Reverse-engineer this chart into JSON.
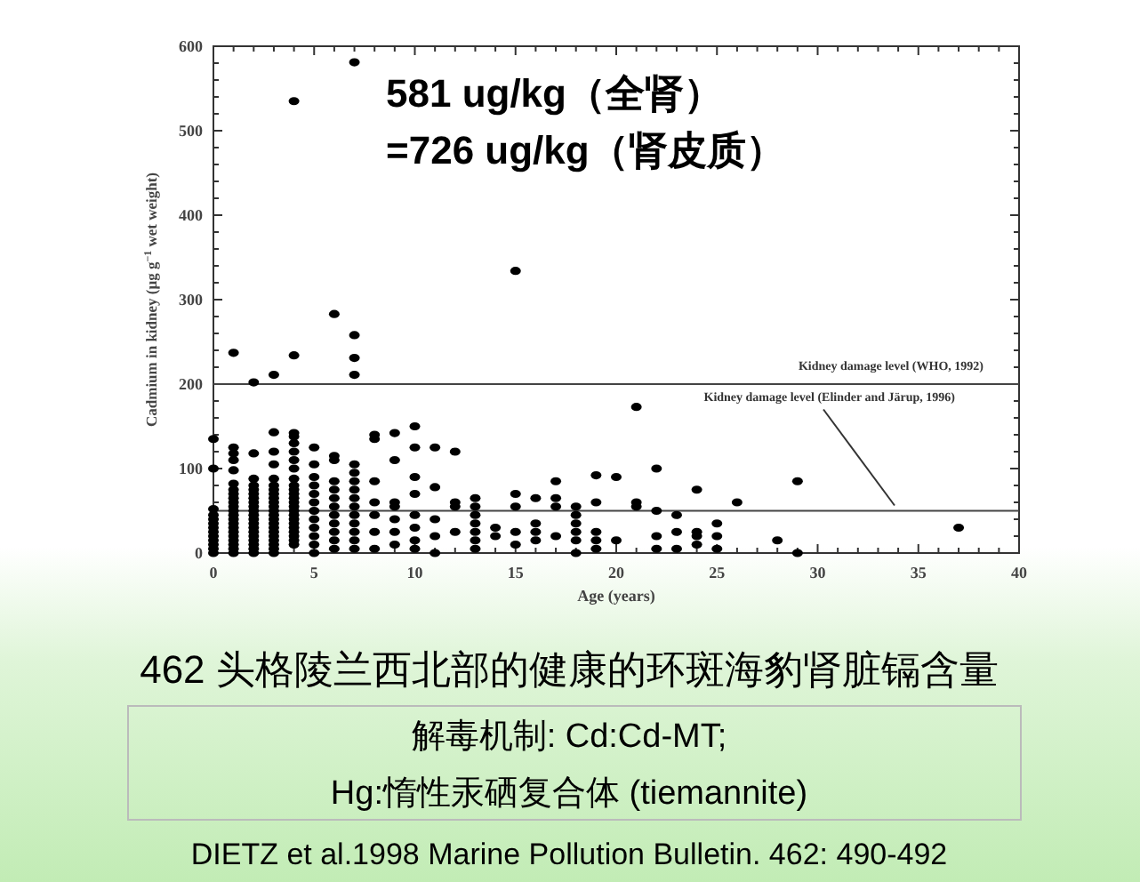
{
  "chart_data": {
    "type": "scatter",
    "title": "462 头格陵兰西北部的健康的环斑海豹肾脏镉含量",
    "xlabel": "Age (years)",
    "ylabel": "Cadmium in kidney (µg g$^{−1}$ wet weight)",
    "annotations": [
      "581 ug/kg（全肾）",
      "=726 ug/kg（肾皮质）",
      "解毒机制: Cd:Cd-MT;",
      "Hg:惰性汞硒复合体 (tiemannite)",
      "DIETZ et al.1998 Marine Pollution Bulletin. 462: 490-492"
    ],
    "xlim": [
      0,
      40
    ],
    "ylim": [
      0,
      600
    ],
    "xticks": [
      0,
      5,
      10,
      15,
      20,
      25,
      30,
      35,
      40
    ],
    "yticks": [
      0,
      100,
      200,
      300,
      400,
      500,
      600
    ],
    "grid": false,
    "marker": "circle",
    "ref_lines": [
      {
        "axis": "y",
        "value": 200,
        "label": "Kidney damage level (WHO, 1992)"
      },
      {
        "axis": "y",
        "value": 50,
        "label": "Kidney damage level (Elinder and Järup, 1996)"
      }
    ],
    "series": [
      {
        "color": "#000000",
        "x": [
          0,
          0,
          0,
          0,
          0,
          0,
          0,
          0,
          0,
          0,
          0,
          0,
          0,
          1,
          1,
          1,
          1,
          1,
          1,
          1,
          1,
          1,
          1,
          1,
          1,
          1,
          1,
          1,
          1,
          1,
          1,
          1,
          1,
          1,
          1,
          2,
          2,
          2,
          2,
          2,
          2,
          2,
          2,
          2,
          2,
          2,
          2,
          2,
          2,
          2,
          2,
          2,
          2,
          2,
          2,
          3,
          3,
          3,
          3,
          3,
          3,
          3,
          3,
          3,
          3,
          3,
          3,
          3,
          3,
          3,
          3,
          3,
          3,
          3,
          3,
          3,
          3,
          4,
          4,
          4,
          4,
          4,
          4,
          4,
          4,
          4,
          4,
          4,
          4,
          4,
          4,
          4,
          4,
          4,
          4,
          4,
          4,
          4,
          4,
          4,
          4,
          5,
          5,
          5,
          5,
          5,
          5,
          5,
          5,
          5,
          5,
          5,
          5,
          6,
          6,
          6,
          6,
          6,
          6,
          6,
          6,
          6,
          6,
          6,
          6,
          7,
          7,
          7,
          7,
          7,
          7,
          7,
          7,
          7,
          7,
          7,
          7,
          7,
          7,
          7,
          8,
          8,
          8,
          8,
          8,
          8,
          8,
          9,
          9,
          9,
          9,
          9,
          9,
          9,
          10,
          10,
          10,
          10,
          10,
          10,
          10,
          10,
          11,
          11,
          11,
          11,
          11,
          12,
          12,
          12,
          12,
          13,
          13,
          13,
          13,
          13,
          13,
          13,
          14,
          14,
          15,
          15,
          15,
          15,
          15,
          16,
          16,
          16,
          16,
          17,
          17,
          17,
          17,
          18,
          18,
          18,
          18,
          18,
          18,
          19,
          19,
          19,
          19,
          19,
          20,
          20,
          21,
          21,
          21,
          22,
          22,
          22,
          22,
          23,
          23,
          23,
          24,
          24,
          24,
          24,
          25,
          25,
          25,
          26,
          28,
          29,
          29,
          37
        ],
        "values": [
          0,
          5,
          10,
          15,
          20,
          25,
          30,
          35,
          40,
          45,
          52,
          100,
          135,
          0,
          5,
          10,
          15,
          20,
          25,
          30,
          35,
          40,
          45,
          50,
          55,
          60,
          65,
          70,
          75,
          82,
          98,
          110,
          118,
          125,
          237,
          0,
          5,
          10,
          15,
          20,
          25,
          30,
          35,
          40,
          45,
          50,
          55,
          60,
          65,
          70,
          75,
          80,
          88,
          118,
          202,
          0,
          5,
          10,
          15,
          20,
          25,
          30,
          35,
          40,
          45,
          50,
          55,
          60,
          65,
          70,
          75,
          80,
          88,
          105,
          120,
          143,
          211,
          10,
          15,
          20,
          25,
          30,
          35,
          40,
          45,
          50,
          55,
          60,
          65,
          70,
          75,
          80,
          88,
          100,
          110,
          120,
          130,
          138,
          142,
          234,
          535,
          0,
          10,
          20,
          30,
          40,
          50,
          60,
          70,
          80,
          90,
          105,
          125,
          5,
          15,
          25,
          35,
          45,
          55,
          65,
          75,
          85,
          110,
          115,
          283,
          5,
          15,
          25,
          35,
          45,
          55,
          65,
          75,
          85,
          95,
          105,
          211,
          231,
          258,
          581,
          5,
          25,
          45,
          60,
          85,
          135,
          140,
          10,
          25,
          40,
          55,
          60,
          110,
          142,
          5,
          15,
          30,
          45,
          70,
          90,
          125,
          150,
          0,
          20,
          40,
          78,
          125,
          25,
          55,
          60,
          120,
          5,
          15,
          25,
          35,
          45,
          55,
          65,
          20,
          30,
          10,
          25,
          55,
          70,
          334,
          15,
          25,
          35,
          65,
          20,
          55,
          65,
          85,
          0,
          15,
          25,
          35,
          45,
          55,
          5,
          15,
          25,
          60,
          92,
          15,
          90,
          55,
          60,
          173,
          5,
          20,
          50,
          100,
          5,
          25,
          45,
          10,
          20,
          25,
          75,
          5,
          20,
          35,
          60,
          15,
          0,
          85,
          30
        ]
      }
    ]
  }
}
